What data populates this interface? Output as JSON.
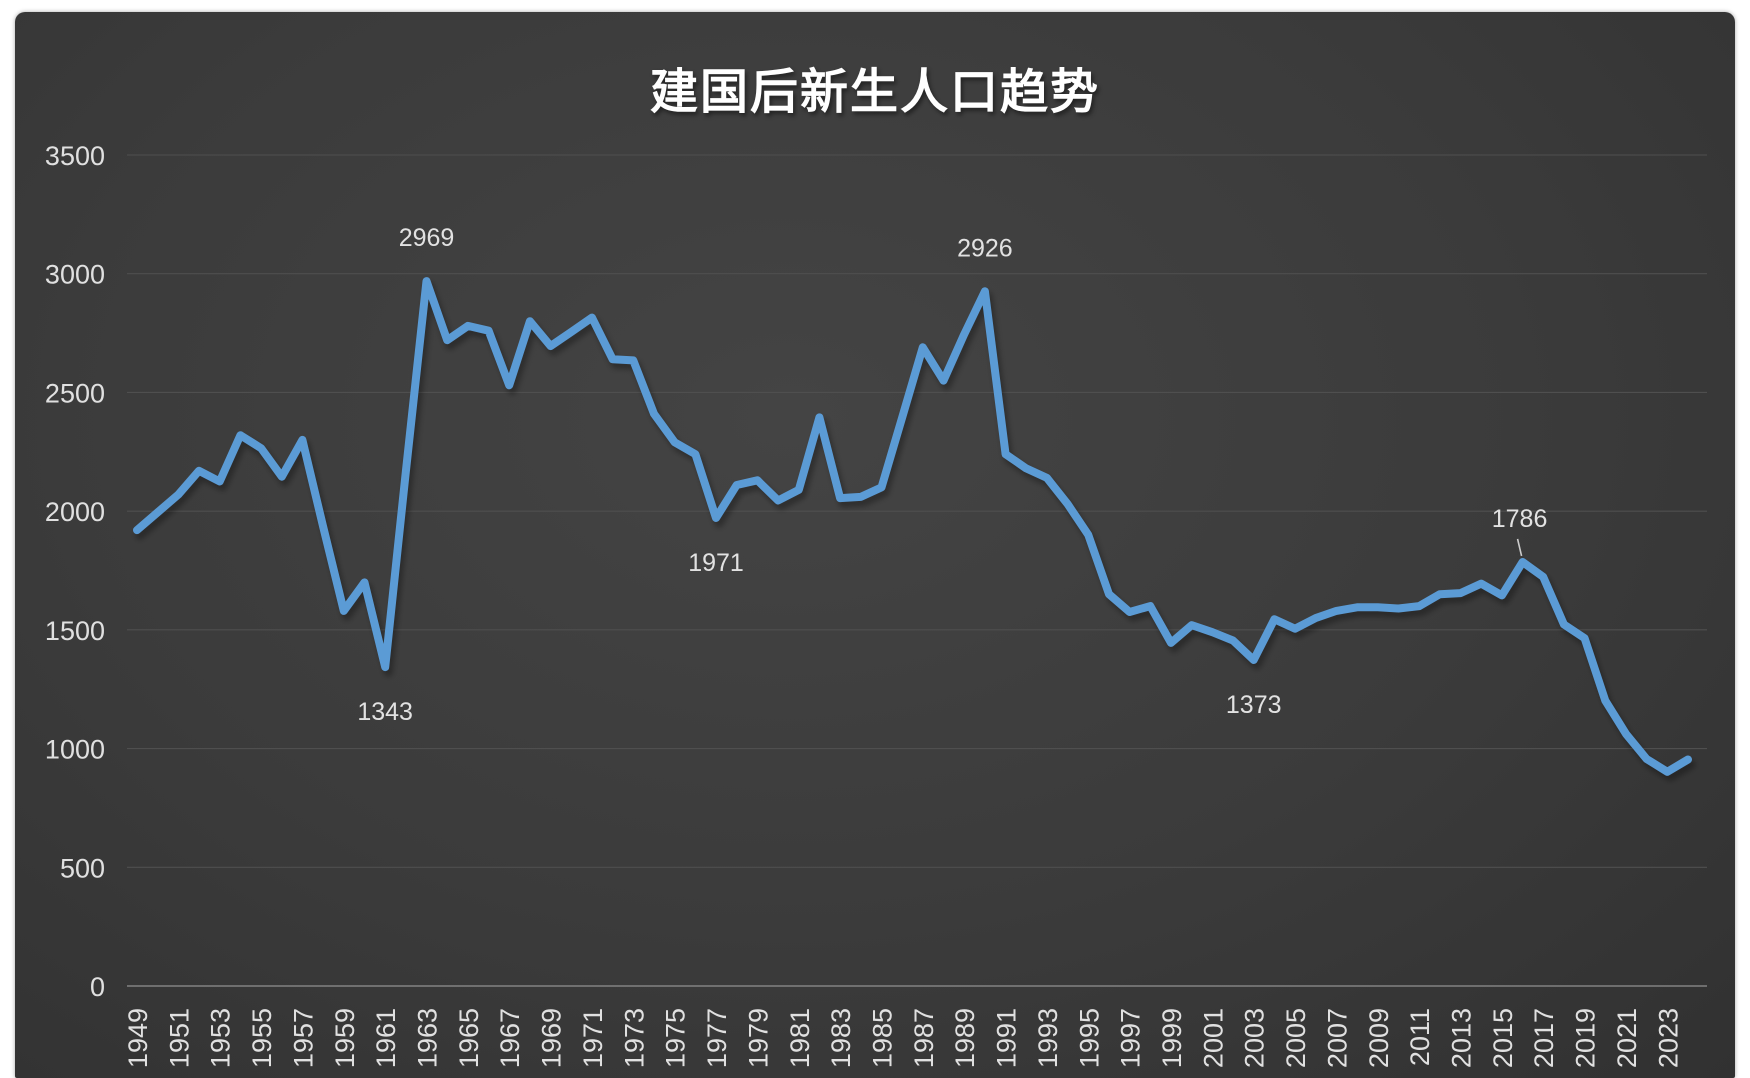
{
  "chart": {
    "background": "#3b3b3b",
    "grid_color": "#4f4f4f",
    "axis_color": "#828282",
    "tick_text_color": "#e0e0e0",
    "data_label_color": "#e2e2e2",
    "title_color": "#ffffff",
    "line_color": "#5B9BD5",
    "leader_line_color": "#cccccc"
  },
  "chart_data": {
    "type": "line",
    "title": "建国后新生人口趋势",
    "xlabel": "",
    "ylabel": "",
    "ylim": [
      0,
      3500
    ],
    "yticks": [
      0,
      500,
      1000,
      1500,
      2000,
      2500,
      3000,
      3500
    ],
    "grid": true,
    "legend": false,
    "x": [
      1949,
      1950,
      1951,
      1952,
      1953,
      1954,
      1955,
      1956,
      1957,
      1958,
      1959,
      1960,
      1961,
      1962,
      1963,
      1964,
      1965,
      1966,
      1967,
      1968,
      1969,
      1970,
      1971,
      1972,
      1973,
      1974,
      1975,
      1976,
      1977,
      1978,
      1979,
      1980,
      1981,
      1982,
      1983,
      1984,
      1985,
      1986,
      1987,
      1988,
      1989,
      1990,
      1991,
      1992,
      1993,
      1994,
      1995,
      1996,
      1997,
      1998,
      1999,
      2000,
      2001,
      2002,
      2003,
      2004,
      2005,
      2006,
      2007,
      2008,
      2009,
      2010,
      2011,
      2012,
      2013,
      2014,
      2015,
      2016,
      2017,
      2018,
      2019,
      2020,
      2021,
      2022,
      2023,
      2024
    ],
    "values": [
      1920,
      1995,
      2070,
      2170,
      2125,
      2320,
      2265,
      2145,
      2300,
      1935,
      1580,
      1700,
      1343,
      2165,
      2969,
      2720,
      2780,
      2760,
      2530,
      2800,
      2695,
      2755,
      2815,
      2640,
      2635,
      2410,
      2290,
      2240,
      1971,
      2110,
      2130,
      2045,
      2090,
      2395,
      2055,
      2060,
      2100,
      2395,
      2690,
      2550,
      2745,
      2926,
      2240,
      2180,
      2140,
      2030,
      1900,
      1650,
      1575,
      1600,
      1445,
      1520,
      1490,
      1455,
      1373,
      1545,
      1505,
      1550,
      1580,
      1595,
      1595,
      1590,
      1600,
      1650,
      1655,
      1695,
      1645,
      1786,
      1723,
      1523,
      1465,
      1202,
      1062,
      956,
      902,
      954
    ],
    "xtick_labels": [
      "1949",
      "1951",
      "1953",
      "1955",
      "1957",
      "1959",
      "1961",
      "1963",
      "1965",
      "1967",
      "1969",
      "1971",
      "1973",
      "1975",
      "1977",
      "1979",
      "1981",
      "1983",
      "1985",
      "1987",
      "1989",
      "1991",
      "1993",
      "1995",
      "1997",
      "1999",
      "2001",
      "2003",
      "2005",
      "2007",
      "2009",
      "2011",
      "2013",
      "2015",
      "2017",
      "2019",
      "2021",
      "2023"
    ],
    "annotations": [
      {
        "x": 1963,
        "text": "2969",
        "placement": "above"
      },
      {
        "x": 1961,
        "text": "1343",
        "placement": "below"
      },
      {
        "x": 1977,
        "text": "1971",
        "placement": "below"
      },
      {
        "x": 1990,
        "text": "2926",
        "placement": "above"
      },
      {
        "x": 2003,
        "text": "1373",
        "placement": "below"
      },
      {
        "x": 2016,
        "text": "1786",
        "placement": "above",
        "leader_line": true
      }
    ]
  }
}
